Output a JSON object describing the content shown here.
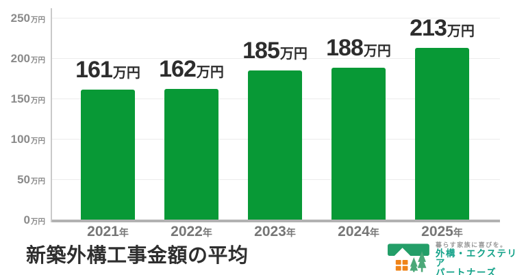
{
  "title": "新築外構工事金額の平均",
  "logo": {
    "tagline": "暮らす家族に喜びを。",
    "brand_line1": "外構・エクステリア",
    "brand_line2": "パートナーズ",
    "text_color": "#12a188",
    "mark": {
      "rect_green": "#239e68",
      "tree_green": "#4ba878",
      "window_orange": "#ef8318"
    }
  },
  "chart_data": {
    "type": "bar",
    "title": "新築外構工事金額の平均",
    "categories": [
      "2021",
      "2022",
      "2023",
      "2024",
      "2025"
    ],
    "category_suffix": "年",
    "values": [
      161,
      162,
      185,
      188,
      213
    ],
    "value_unit": "万円",
    "y_ticks": [
      250,
      200,
      150,
      100,
      50,
      0
    ],
    "y_tick_unit": "万円",
    "ylim": [
      0,
      250
    ],
    "xlabel": "",
    "ylabel": "",
    "grid": true,
    "legend": false,
    "bar_color": "#089936",
    "axis_color": "#b2b2b2",
    "grid_color": "#ececec",
    "label_color": "#2d2d2d",
    "tick_color": "#8a8a8a"
  }
}
